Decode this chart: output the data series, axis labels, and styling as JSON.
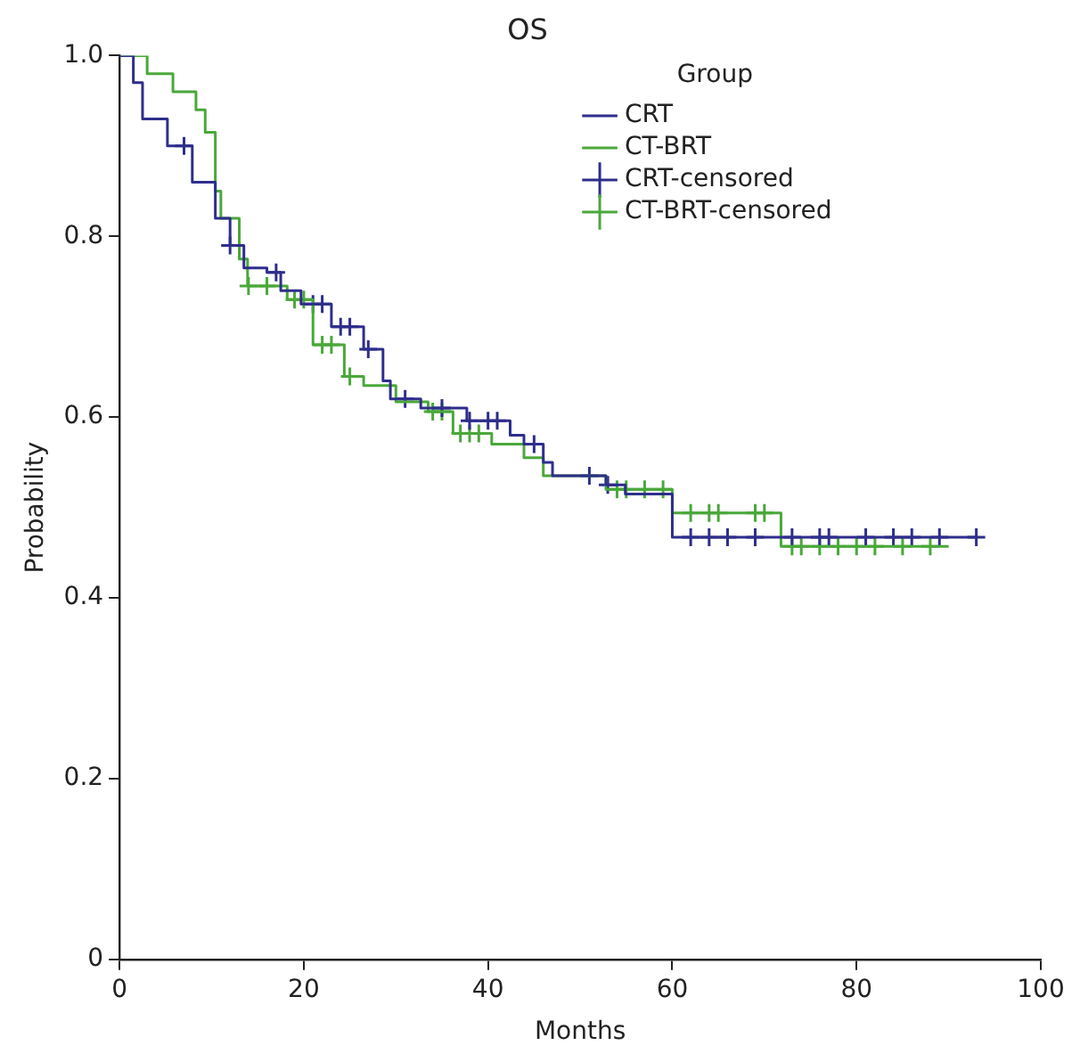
{
  "chart_data": {
    "type": "step",
    "title": "OS",
    "xlabel": "Months",
    "ylabel": "Probability",
    "legend_title": "Group",
    "legend": "top right",
    "grid": false,
    "xlim": [
      0,
      100
    ],
    "xticks": [
      0,
      20,
      40,
      60,
      80,
      100
    ],
    "ylim": [
      0,
      1
    ],
    "yticks": [
      0,
      0.2,
      0.4,
      0.6,
      0.8,
      {
        "value": 1,
        "label": "1.0"
      }
    ],
    "series": [
      {
        "name": "CRT",
        "type": "step",
        "color": "#2e2e8c",
        "x": [
          0,
          1.5,
          2.5,
          5.2,
          7.9,
          10.4,
          12,
          13.5,
          16,
          17.5,
          19.7,
          23,
          26.5,
          28.6,
          29.4,
          32.7,
          37.7,
          42.4,
          43.9,
          46,
          47,
          52.8,
          54.9,
          60,
          93
        ],
        "values": [
          1,
          0.97,
          0.93,
          0.9,
          0.86,
          0.82,
          0.79,
          0.765,
          0.76,
          0.74,
          0.725,
          0.7,
          0.675,
          0.64,
          0.62,
          0.61,
          0.596,
          0.58,
          0.57,
          0.55,
          0.535,
          0.525,
          0.515,
          0.467,
          0.467
        ]
      },
      {
        "name": "CT-BRT",
        "type": "step",
        "color": "#4aa83a",
        "x": [
          0,
          3,
          5.8,
          8.3,
          9.3,
          10.4,
          11,
          13,
          13.9,
          18.2,
          21,
          24.4,
          26.5,
          30,
          33.5,
          36.2,
          40.4,
          43.9,
          46,
          52.8,
          60,
          71.8,
          90
        ],
        "values": [
          1,
          0.98,
          0.96,
          0.94,
          0.915,
          0.85,
          0.82,
          0.775,
          0.745,
          0.73,
          0.68,
          0.645,
          0.635,
          0.617,
          0.606,
          0.582,
          0.57,
          0.555,
          0.535,
          0.52,
          0.494,
          0.457,
          0.457
        ]
      },
      {
        "name": "CRT-censored",
        "type": "scatter",
        "marker": "cross",
        "color": "#2e2e8c",
        "x": [
          7,
          12,
          17,
          21,
          22,
          24,
          25,
          27,
          31,
          35,
          38,
          40,
          41,
          45,
          51,
          53,
          56,
          58,
          62,
          64,
          66,
          69,
          73,
          76,
          77,
          81,
          84,
          86,
          89,
          93
        ],
        "values": [
          0.9,
          0.79,
          0.76,
          0.725,
          0.725,
          0.7,
          0.7,
          0.675,
          0.62,
          0.61,
          0.596,
          0.596,
          0.596,
          0.57,
          0.535,
          0.525,
          null,
          null,
          0.467,
          0.467,
          0.467,
          0.467,
          0.467,
          0.467,
          0.467,
          0.467,
          0.467,
          0.467,
          0.467,
          0.467
        ]
      },
      {
        "name": "CT-BRT-censored",
        "type": "scatter",
        "marker": "cross",
        "color": "#4aa83a",
        "x": [
          14,
          16,
          19,
          20,
          22,
          23,
          25,
          34,
          35,
          37,
          38,
          39,
          54,
          55,
          57,
          59,
          62,
          64,
          65,
          69,
          70,
          73,
          74,
          76,
          78,
          80,
          82,
          85,
          88
        ],
        "values": [
          0.745,
          0.745,
          0.73,
          0.73,
          0.68,
          0.68,
          0.645,
          0.606,
          0.606,
          0.582,
          0.582,
          0.582,
          0.52,
          0.52,
          0.52,
          0.52,
          0.494,
          0.494,
          0.494,
          0.494,
          0.494,
          0.457,
          0.457,
          0.457,
          0.457,
          0.457,
          0.457,
          0.457,
          0.457
        ]
      }
    ]
  }
}
